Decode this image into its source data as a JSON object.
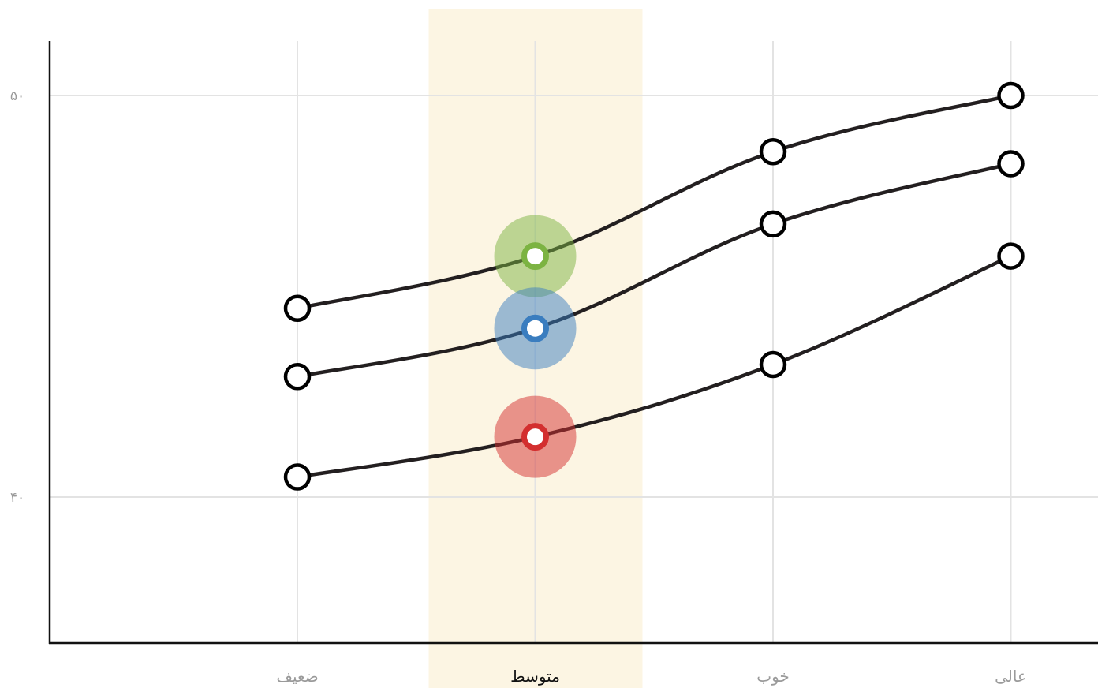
{
  "chart_data": {
    "type": "line",
    "categories": [
      "ضعیف",
      "متوسط",
      "خوب",
      "عالی"
    ],
    "highlight_category": "متوسط",
    "y_ticks": [
      "۴۰",
      "۵۰"
    ],
    "y_tick_values": [
      40,
      50
    ],
    "ylim": [
      36.4,
      51.4
    ],
    "grid": true,
    "series": [
      {
        "values": [
          44.7,
          46.0,
          48.6,
          50.0
        ],
        "highlight_color": "#7cb342"
      },
      {
        "values": [
          43.0,
          44.2,
          46.8,
          48.3
        ],
        "highlight_color": "#3a7dbf"
      },
      {
        "values": [
          40.5,
          41.5,
          43.3,
          46.0
        ],
        "highlight_color": "#d32f2f"
      }
    ],
    "colors": {
      "line": "#231f20",
      "highlight_band": "#fcf5e3",
      "grid": "#e3e3e3",
      "axis": "#111111"
    }
  }
}
